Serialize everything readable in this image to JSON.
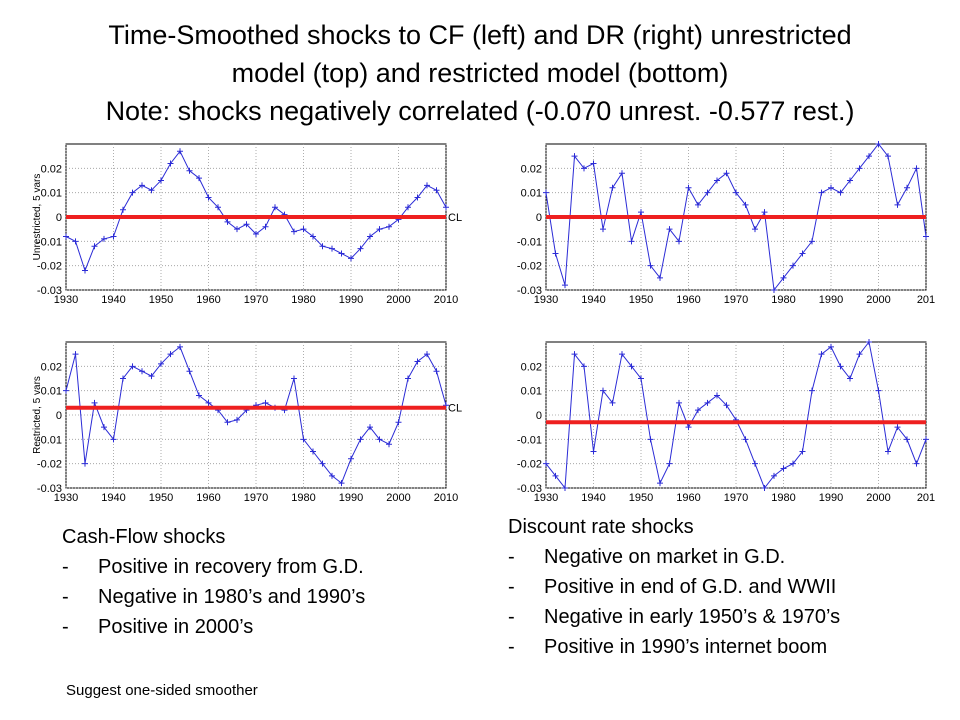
{
  "title": {
    "line1": "Time-Smoothed  shocks to CF (left) and DR (right) unrestricted",
    "line2": "model (top) and restricted model (bottom)",
    "line3": "Note: shocks negatively correlated (-0.070 unrest.  -0.577 rest.)"
  },
  "chart_data": [
    {
      "type": "line",
      "panel": "top-left",
      "ylabel": "Unrestricted, 5 vars",
      "ref_label": "CL",
      "xlim": [
        1930,
        2010
      ],
      "ylim": [
        -0.03,
        0.03
      ],
      "xticks": [
        "1930",
        "1940",
        "1950",
        "1960",
        "1970",
        "1980",
        "1990",
        "2000",
        "2010"
      ],
      "yticks": [
        "0.02",
        "0.01",
        "0",
        "-0.01",
        "-0.02",
        "-0.03"
      ],
      "ref_y": 0,
      "series_color": "#2b2bd6",
      "ref_color": "#ee2020",
      "x": [
        1930,
        1932,
        1934,
        1936,
        1938,
        1940,
        1942,
        1944,
        1946,
        1948,
        1950,
        1952,
        1954,
        1956,
        1958,
        1960,
        1962,
        1964,
        1966,
        1968,
        1970,
        1972,
        1974,
        1976,
        1978,
        1980,
        1982,
        1984,
        1986,
        1988,
        1990,
        1992,
        1994,
        1996,
        1998,
        2000,
        2002,
        2004,
        2006,
        2008,
        2010
      ],
      "y": [
        -0.008,
        -0.01,
        -0.022,
        -0.012,
        -0.009,
        -0.008,
        0.003,
        0.01,
        0.013,
        0.011,
        0.015,
        0.022,
        0.027,
        0.019,
        0.016,
        0.008,
        0.004,
        -0.002,
        -0.005,
        -0.003,
        -0.007,
        -0.004,
        0.004,
        0.001,
        -0.006,
        -0.005,
        -0.008,
        -0.012,
        -0.013,
        -0.015,
        -0.017,
        -0.013,
        -0.008,
        -0.005,
        -0.004,
        -0.001,
        0.004,
        0.008,
        0.013,
        0.011,
        0.004
      ]
    },
    {
      "type": "line",
      "panel": "top-right",
      "ylabel": "",
      "xlim": [
        1930,
        2010
      ],
      "ylim": [
        -0.03,
        0.03
      ],
      "xticks": [
        "1930",
        "1940",
        "1950",
        "1960",
        "1970",
        "1980",
        "1990",
        "2000",
        "201"
      ],
      "yticks": [
        "0.02",
        "0.01",
        "0",
        "-0.01",
        "-0.02",
        "-0.03"
      ],
      "ref_y": 0,
      "series_color": "#2b2bd6",
      "ref_color": "#ee2020",
      "x": [
        1930,
        1932,
        1934,
        1936,
        1938,
        1940,
        1942,
        1944,
        1946,
        1948,
        1950,
        1952,
        1954,
        1956,
        1958,
        1960,
        1962,
        1964,
        1966,
        1968,
        1970,
        1972,
        1974,
        1976,
        1978,
        1980,
        1982,
        1984,
        1986,
        1988,
        1990,
        1992,
        1994,
        1996,
        1998,
        2000,
        2002,
        2004,
        2006,
        2008,
        2010
      ],
      "y": [
        0.01,
        -0.015,
        -0.028,
        0.025,
        0.02,
        0.022,
        -0.005,
        0.012,
        0.018,
        -0.01,
        0.002,
        -0.02,
        -0.025,
        -0.005,
        -0.01,
        0.012,
        0.005,
        0.01,
        0.015,
        0.018,
        0.01,
        0.005,
        -0.005,
        0.002,
        -0.03,
        -0.025,
        -0.02,
        -0.015,
        -0.01,
        0.01,
        0.012,
        0.01,
        0.015,
        0.02,
        0.025,
        0.03,
        0.025,
        0.005,
        0.012,
        0.02,
        -0.008
      ]
    },
    {
      "type": "line",
      "panel": "bottom-left",
      "ylabel": "Restricted, 5 vars",
      "ref_label": "CL",
      "xlim": [
        1930,
        2010
      ],
      "ylim": [
        -0.03,
        0.03
      ],
      "xticks": [
        "1930",
        "1940",
        "1950",
        "1960",
        "1970",
        "1980",
        "1990",
        "2000",
        "2010"
      ],
      "yticks": [
        "0.02",
        "0.01",
        "0",
        "-0.01",
        "-0.02",
        "-0.03"
      ],
      "ref_y": 0.003,
      "series_color": "#2b2bd6",
      "ref_color": "#ee2020",
      "x": [
        1930,
        1932,
        1934,
        1936,
        1938,
        1940,
        1942,
        1944,
        1946,
        1948,
        1950,
        1952,
        1954,
        1956,
        1958,
        1960,
        1962,
        1964,
        1966,
        1968,
        1970,
        1972,
        1974,
        1976,
        1978,
        1980,
        1982,
        1984,
        1986,
        1988,
        1990,
        1992,
        1994,
        1996,
        1998,
        2000,
        2002,
        2004,
        2006,
        2008,
        2010
      ],
      "y": [
        0.01,
        0.025,
        -0.02,
        0.005,
        -0.005,
        -0.01,
        0.015,
        0.02,
        0.018,
        0.016,
        0.021,
        0.025,
        0.028,
        0.018,
        0.008,
        0.005,
        0.002,
        -0.003,
        -0.002,
        0.002,
        0.004,
        0.005,
        0.003,
        0.002,
        0.015,
        -0.01,
        -0.015,
        -0.02,
        -0.025,
        -0.028,
        -0.018,
        -0.01,
        -0.005,
        -0.01,
        -0.012,
        -0.003,
        0.015,
        0.022,
        0.025,
        0.018,
        0.004
      ]
    },
    {
      "type": "line",
      "panel": "bottom-right",
      "ylabel": "",
      "xlim": [
        1930,
        2010
      ],
      "ylim": [
        -0.03,
        0.03
      ],
      "xticks": [
        "1930",
        "1940",
        "1950",
        "1960",
        "1970",
        "1980",
        "1990",
        "2000",
        "201"
      ],
      "yticks": [
        "0.02",
        "0.01",
        "0",
        "-0.01",
        "-0.02",
        "-0.03"
      ],
      "ref_y": -0.003,
      "series_color": "#2b2bd6",
      "ref_color": "#ee2020",
      "x": [
        1930,
        1932,
        1934,
        1936,
        1938,
        1940,
        1942,
        1944,
        1946,
        1948,
        1950,
        1952,
        1954,
        1956,
        1958,
        1960,
        1962,
        1964,
        1966,
        1968,
        1970,
        1972,
        1974,
        1976,
        1978,
        1980,
        1982,
        1984,
        1986,
        1988,
        1990,
        1992,
        1994,
        1996,
        1998,
        2000,
        2002,
        2004,
        2006,
        2008,
        2010
      ],
      "y": [
        -0.02,
        -0.025,
        -0.03,
        0.025,
        0.02,
        -0.015,
        0.01,
        0.005,
        0.025,
        0.02,
        0.015,
        -0.01,
        -0.028,
        -0.02,
        0.005,
        -0.005,
        0.002,
        0.005,
        0.008,
        0.004,
        -0.002,
        -0.01,
        -0.02,
        -0.03,
        -0.025,
        -0.022,
        -0.02,
        -0.015,
        0.01,
        0.025,
        0.028,
        0.02,
        0.015,
        0.025,
        0.03,
        0.01,
        -0.015,
        -0.005,
        -0.01,
        -0.02,
        -0.01
      ]
    }
  ],
  "cf_notes": {
    "heading": "Cash-Flow shocks",
    "items": [
      "Positive in recovery from G.D.",
      "Negative in 1980’s and 1990’s",
      "Positive in 2000’s"
    ]
  },
  "dr_notes": {
    "heading": "Discount rate shocks",
    "items": [
      "Negative on market in G.D.",
      "Positive in end of G.D. and WWII",
      "Negative in early 1950’s & 1970’s",
      "Positive in 1990’s internet boom"
    ]
  },
  "footer": "Suggest one-sided smoother"
}
